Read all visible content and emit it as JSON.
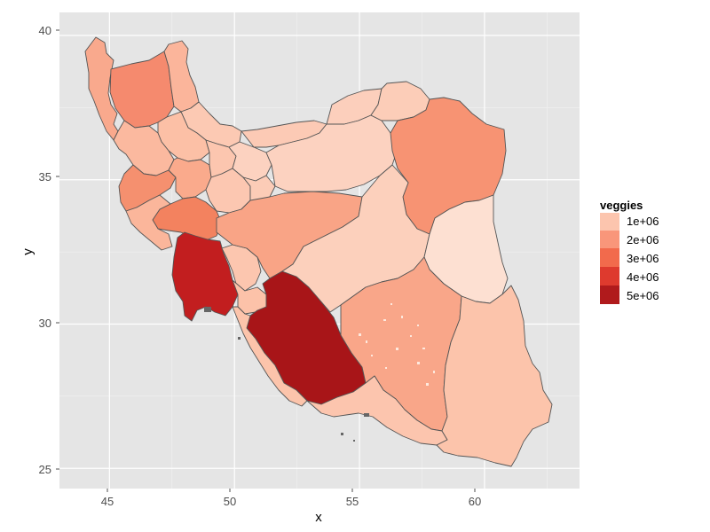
{
  "chart_data": {
    "type": "choropleth",
    "title": "",
    "xlabel": "x",
    "ylabel": "y",
    "xlim": [
      43.0,
      63.8
    ],
    "ylim": [
      24.3,
      40.8
    ],
    "x_ticks": [
      "45",
      "50",
      "55",
      "60"
    ],
    "y_ticks": [
      "25",
      "30",
      "35",
      "40"
    ],
    "grid": true,
    "legend": {
      "title": "veggies",
      "position": "right",
      "entries": [
        {
          "label": "1e+06",
          "color": "#FCC5AE"
        },
        {
          "label": "2e+06",
          "color": "#F9967A"
        },
        {
          "label": "3e+06",
          "color": "#F26A4C"
        },
        {
          "label": "4e+06",
          "color": "#DE3A2E"
        },
        {
          "label": "5e+06",
          "color": "#B01A1C"
        }
      ]
    }
  },
  "colors": {
    "panel": "#E5E5E5",
    "grid_major": "#FFFFFF",
    "grid_minor": "#F2F2F2",
    "border": "#555555"
  }
}
